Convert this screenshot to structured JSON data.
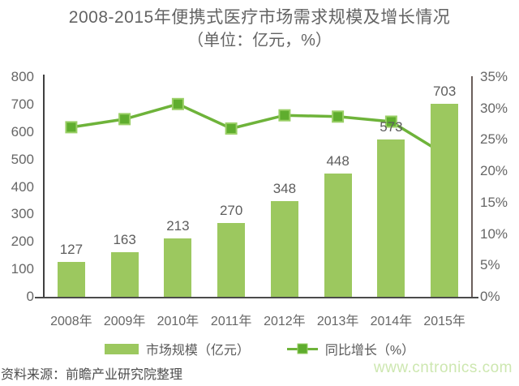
{
  "title": {
    "line1": "2008-2015年便携式医疗市场需求规模及增长情况",
    "line2": "（单位：亿元，%）"
  },
  "chart_data": {
    "type": "bar+line",
    "categories": [
      "2008年",
      "2009年",
      "2010年",
      "2011年",
      "2012年",
      "2013年",
      "2014年",
      "2015年"
    ],
    "series": [
      {
        "name": "市场规模（亿元）",
        "type": "bar",
        "axis": "left",
        "values": [
          127,
          163,
          213,
          270,
          348,
          448,
          573,
          703
        ]
      },
      {
        "name": "同比增长（%）",
        "type": "line",
        "axis": "right",
        "values": [
          27.0,
          28.3,
          30.7,
          26.8,
          28.9,
          28.7,
          27.9,
          22.7
        ]
      }
    ],
    "bar_labels": [
      "127",
      "163",
      "213",
      "270",
      "348",
      "448",
      "573",
      "703"
    ],
    "y_left": {
      "min": 0,
      "max": 800,
      "step": 100
    },
    "y_right": {
      "min": 0,
      "max": 35,
      "step": 5,
      "suffix": "%"
    },
    "grid": false,
    "legend_position": "bottom"
  },
  "legend": {
    "bar_label": "市场规模（亿元）",
    "line_label": "同比增长（%）"
  },
  "footer": {
    "source": "资料来源：前瞻产业研究院整理",
    "watermark": "www.cntronics.com"
  },
  "colors": {
    "bar": "#9CC85F",
    "line": "#6EB33A",
    "marker": "#5FAD2E",
    "marker_border": "#9ACF66",
    "axis": "#4a4a4a",
    "text": "#666666",
    "title_text": "#636363",
    "watermark": "#cde7b0"
  }
}
